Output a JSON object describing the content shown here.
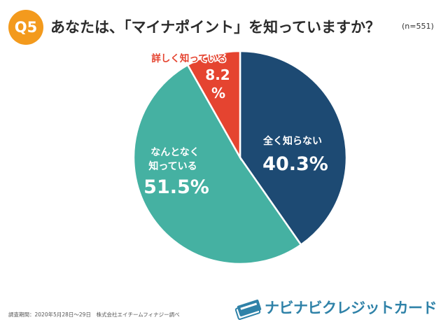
{
  "header": {
    "question_badge": "Q5",
    "title": "あなたは、「マイナポイント」を知っていますか？",
    "sample_size": "(n=551)"
  },
  "chart_data": {
    "type": "pie",
    "title": "あなたは、「マイナポイント」を知っていますか？",
    "slices": [
      {
        "label": "全く知らない",
        "value": 40.3,
        "display": "40.3%",
        "color": "#1d4a73",
        "label_color": "#ffffff"
      },
      {
        "label": "なんとなく知っている",
        "value": 51.5,
        "display": "51.5%",
        "color": "#45b1a2",
        "label_color": "#ffffff"
      },
      {
        "label": "詳しく知っている",
        "value": 8.2,
        "display": "8.2%",
        "color": "#e54430",
        "label_color": "#e54430"
      }
    ],
    "start": "12 o'clock",
    "direction": "clockwise"
  },
  "footer": {
    "survey_note": "調査期間：2020年5月28日〜29日　株式会社エイチームフィナジー調べ",
    "brand": "ナビナビクレジットカード",
    "brand_color": "#2f82a8"
  },
  "icons": {
    "logo": "credit-card-stack-icon"
  }
}
